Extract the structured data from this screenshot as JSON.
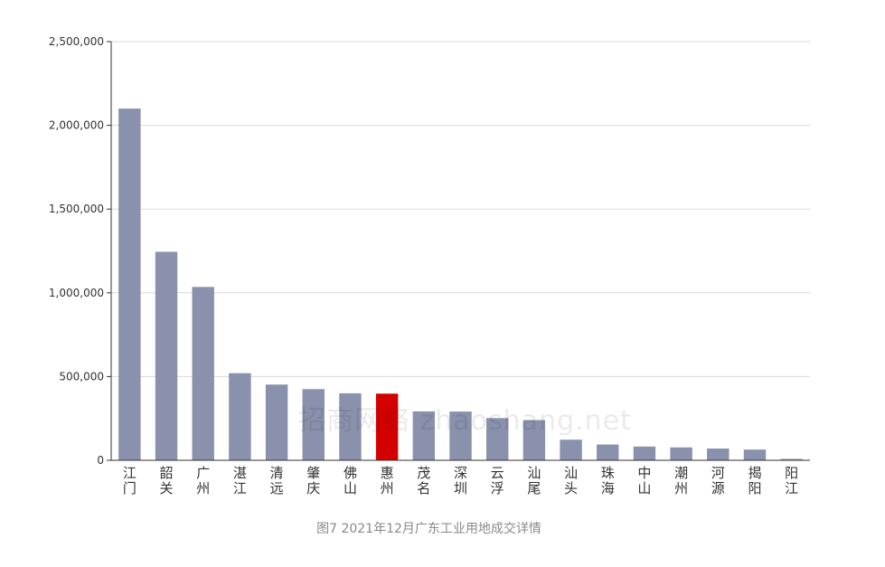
{
  "caption": "图7 2021年12月广东工业用地成交详情",
  "watermark": "招商网络 zhaoshang.net",
  "colors": {
    "bar": "#8991ad",
    "highlight": "#d40000",
    "grid": "#d9d9d9",
    "axis": "#333333",
    "tick_text": "#333333",
    "category_text": "#333333"
  },
  "chart_data": {
    "type": "bar",
    "title": "",
    "xlabel": "",
    "ylabel": "",
    "ylim": [
      0,
      2500000
    ],
    "yticks": [
      0,
      500000,
      1000000,
      1500000,
      2000000,
      2500000
    ],
    "ytick_labels": [
      "0",
      "500,000",
      "1,000,000",
      "1,500,000",
      "2,000,000",
      "2,500,000"
    ],
    "grid": true,
    "categories": [
      "江门",
      "韶关",
      "广州",
      "湛江",
      "清远",
      "肇庆",
      "佛山",
      "惠州",
      "茂名",
      "深圳",
      "云浮",
      "汕尾",
      "汕头",
      "珠海",
      "中山",
      "潮州",
      "河源",
      "揭阳",
      "阳江"
    ],
    "values": [
      2100000,
      1245000,
      1035000,
      520000,
      452000,
      425000,
      400000,
      398000,
      292000,
      291000,
      252000,
      240000,
      123000,
      94000,
      82000,
      77000,
      70000,
      64000,
      8000
    ],
    "highlight_category": "惠州"
  }
}
